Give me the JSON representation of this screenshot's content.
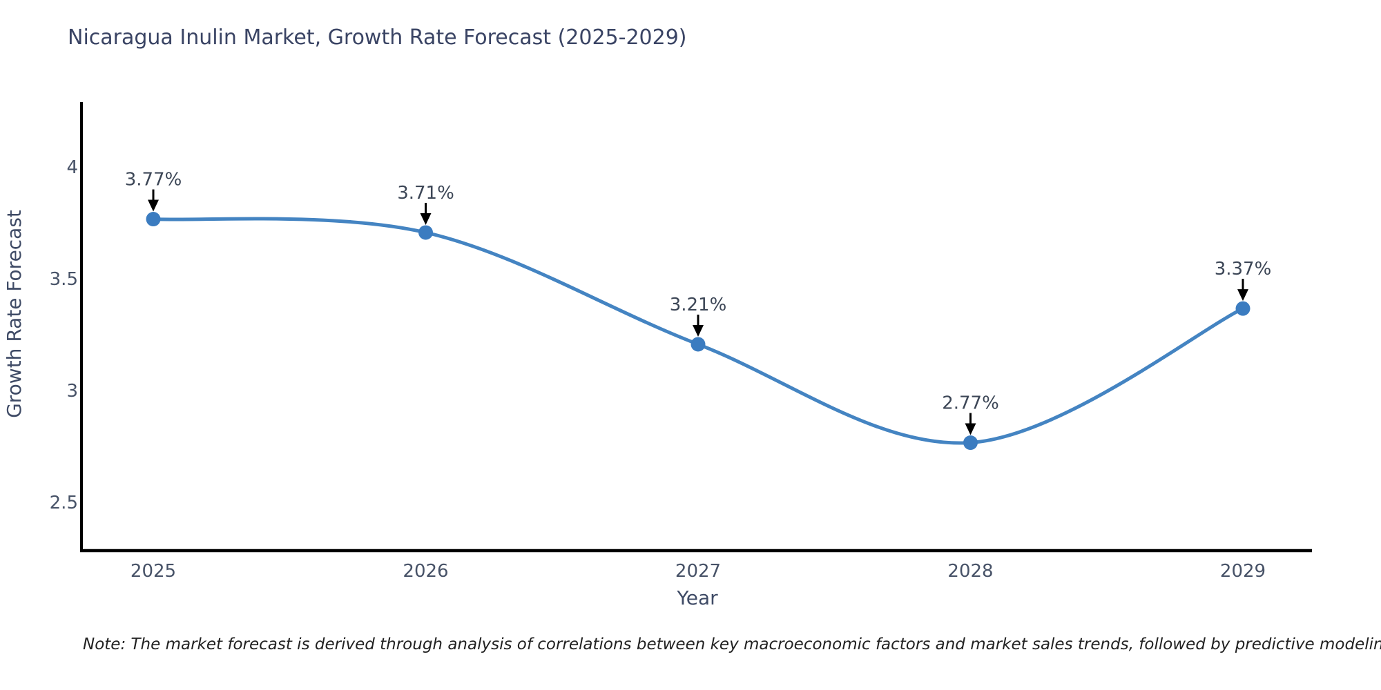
{
  "title": "Nicaragua Inulin Market, Growth Rate Forecast (2025-2029)",
  "note": "Note: The market forecast is derived through analysis of correlations between key macroeconomic factors and market sales trends, followed by predictive modeling to project future sales",
  "chart_data": {
    "type": "line",
    "title": "Nicaragua Inulin Market, Growth Rate Forecast (2025-2029)",
    "xlabel": "Year",
    "ylabel": "Growth Rate Forecast",
    "x": [
      2025,
      2026,
      2027,
      2028,
      2029
    ],
    "x_tick_labels": [
      "2025",
      "2026",
      "2027",
      "2028",
      "2029"
    ],
    "values": [
      3.77,
      3.71,
      3.21,
      2.77,
      3.37
    ],
    "point_labels": [
      "3.77%",
      "3.71%",
      "3.21%",
      "2.77%",
      "3.37%"
    ],
    "yticks": [
      4,
      3.5,
      3,
      2.5
    ],
    "ytick_labels": [
      "4",
      "3.5",
      "3",
      "2.5"
    ],
    "ylim": [
      2.28,
      4.29
    ],
    "grid": false,
    "legend": "none",
    "smoothing": "spline",
    "line_color": "#4484c2",
    "marker_color": "#3b7cc0",
    "arrow_color": "#000000",
    "axis_color": "#000000"
  }
}
